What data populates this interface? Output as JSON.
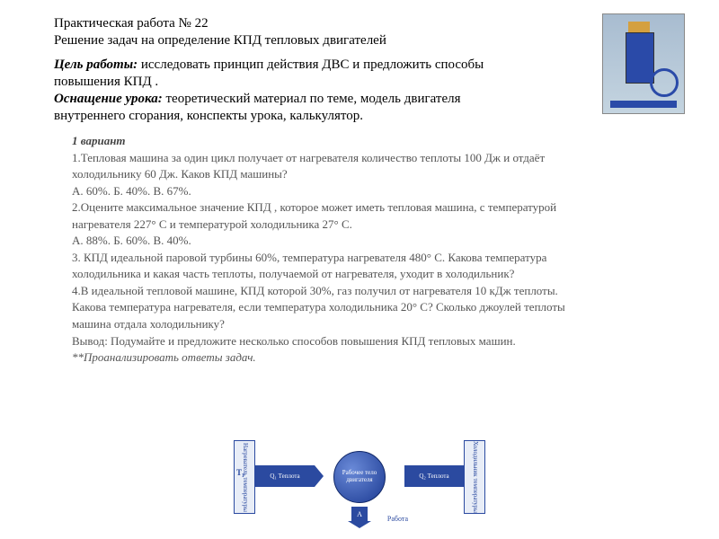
{
  "header": {
    "line1": "Практическая работа № 22",
    "line2": "Решение задач на определение КПД тепловых двигателей"
  },
  "goal": {
    "label": "Цель работы:",
    "text1": " исследовать принцип действия ДВС и предложить способы",
    "text2": "повышения КПД ."
  },
  "equip": {
    "label": "Оснащение урока:",
    "text1": " теоретический материал по теме, модель двигателя",
    "text2": "внутреннего  сгорания, конспекты урока, калькулятор."
  },
  "tasks": {
    "variant": "1 вариант",
    "t1a": "1.Тепловая машина за один цикл получает от нагревателя количество теплоты 100 Дж и отдаёт",
    "t1b": "холодильнику  60 Дж. Каков КПД машины?",
    "t1c": "А. 60%.     Б. 40%.    В. 67%.",
    "t2a": "2.Оцените максимальное значение КПД , которое может иметь тепловая машина, с температурой",
    "t2b": "нагревателя 227° С и температурой холодильника 27° С.",
    "t2c": "А.  88%.   Б.  60%.   В.  40%.",
    "t3a": "3. КПД идеальной паровой турбины 60%, температура нагревателя 480° С. Какова температура",
    "t3b": "холодильника и какая часть теплоты, получаемой от нагревателя, уходит в холодильник?",
    "t4a": "4.В идеальной тепловой машине, КПД которой 30%, газ получил от нагревателя 10 кДж теплоты.",
    "t4b": "Какова температура нагревателя, если температура холодильника 20° С? Сколько джоулей теплоты",
    "t4c": "машина отдала холодильнику?",
    "concl": "Вывод: Подумайте и предложите несколько способов повышения КПД тепловых машин.",
    "note": "**Проанализировать ответы задач."
  },
  "diagram": {
    "heater": "Нагреватель температуры",
    "cooler": "Холодильник температуры",
    "body": "Рабочее тело двигателя",
    "q1": "Q₁ Теплота",
    "q2": "Q₂ Теплота",
    "a": "A",
    "work": "Работа",
    "t1": "T₁",
    "t2": "T₂",
    "colors": {
      "primary": "#2b4aa0",
      "light": "#e8edf7"
    }
  }
}
